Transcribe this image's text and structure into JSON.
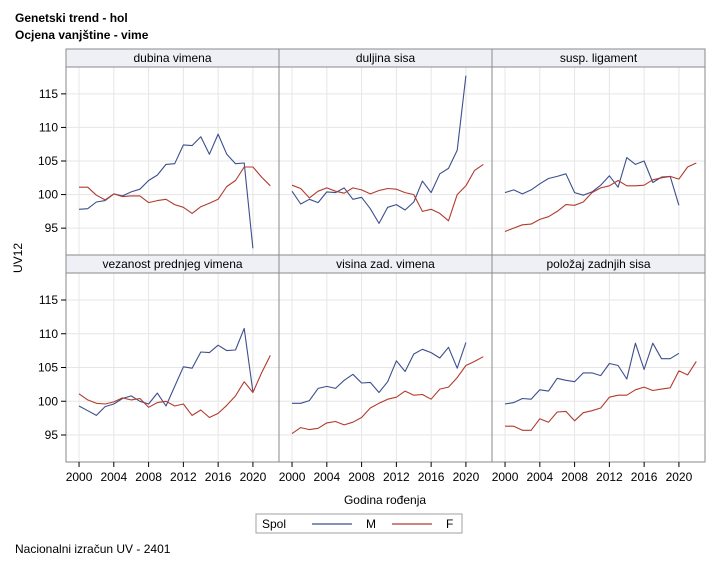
{
  "title": "Genetski trend - hol",
  "subtitle": "Ocjena vanjštine - vime",
  "footnote": "Nacionalni izračun UV - 2401",
  "colors": {
    "M": "#3c4f8c",
    "F": "#b23b2e",
    "grid": "#e6e6e6",
    "frame": "#8a8a8a",
    "header_bg": "#eef0f6"
  },
  "chart_data": {
    "type": "line",
    "ylabel": "UV12",
    "xlabel": "Godina rođenja",
    "xlim": [
      1998.5,
      2023
    ],
    "ylim": [
      91,
      119
    ],
    "x_ticks": [
      2000,
      2004,
      2008,
      2012,
      2016,
      2020
    ],
    "y_ticks": [
      95,
      100,
      105,
      110,
      115
    ],
    "grid": true,
    "legend": {
      "title": "Spol",
      "placement": "bottom",
      "entries": [
        "M",
        "F"
      ]
    },
    "panels": [
      {
        "title": "dubina vimena",
        "series": [
          {
            "name": "M",
            "x": [
              2000,
              2001,
              2002,
              2003,
              2004,
              2005,
              2006,
              2007,
              2008,
              2009,
              2010,
              2011,
              2012,
              2013,
              2014,
              2015,
              2016,
              2017,
              2018,
              2019,
              2020
            ],
            "y": [
              97.8,
              97.9,
              98.9,
              99.1,
              100.1,
              99.8,
              100.4,
              100.8,
              102.1,
              102.9,
              104.5,
              104.6,
              107.4,
              107.3,
              108.6,
              106.0,
              109.0,
              106.0,
              104.6,
              104.7,
              92.0
            ]
          },
          {
            "name": "F",
            "x": [
              2000,
              2001,
              2002,
              2003,
              2004,
              2005,
              2006,
              2007,
              2008,
              2009,
              2010,
              2011,
              2012,
              2013,
              2014,
              2015,
              2016,
              2017,
              2018,
              2019,
              2020,
              2021,
              2022
            ],
            "y": [
              101.1,
              101.1,
              99.9,
              99.2,
              100.1,
              99.7,
              99.8,
              99.8,
              98.8,
              99.1,
              99.3,
              98.5,
              98.1,
              97.2,
              98.2,
              98.7,
              99.3,
              101.2,
              102.1,
              104.1,
              104.1,
              102.6,
              101.3
            ]
          }
        ]
      },
      {
        "title": "duljina sisa",
        "series": [
          {
            "name": "M",
            "x": [
              2000,
              2001,
              2002,
              2003,
              2004,
              2005,
              2006,
              2007,
              2008,
              2009,
              2010,
              2011,
              2012,
              2013,
              2014,
              2015,
              2016,
              2017,
              2018,
              2019,
              2020
            ],
            "y": [
              100.5,
              98.6,
              99.3,
              98.8,
              100.4,
              100.3,
              101.0,
              99.3,
              99.6,
              97.9,
              95.7,
              98.1,
              98.5,
              97.7,
              98.9,
              102.0,
              100.3,
              103.1,
              103.9,
              106.6,
              117.7
            ]
          },
          {
            "name": "F",
            "x": [
              2000,
              2001,
              2002,
              2003,
              2004,
              2005,
              2006,
              2007,
              2008,
              2009,
              2010,
              2011,
              2012,
              2013,
              2014,
              2015,
              2016,
              2017,
              2018,
              2019,
              2020,
              2021,
              2022
            ],
            "y": [
              101.4,
              100.9,
              99.5,
              100.5,
              101.0,
              100.5,
              100.2,
              101.0,
              100.7,
              100.1,
              100.6,
              100.9,
              100.8,
              100.3,
              100.0,
              97.5,
              97.8,
              97.2,
              96.1,
              100.0,
              101.3,
              103.6,
              104.5
            ]
          }
        ]
      },
      {
        "title": "susp. ligament",
        "series": [
          {
            "name": "M",
            "x": [
              2000,
              2001,
              2002,
              2003,
              2004,
              2005,
              2006,
              2007,
              2008,
              2009,
              2010,
              2011,
              2012,
              2013,
              2014,
              2015,
              2016,
              2017,
              2018,
              2019,
              2020
            ],
            "y": [
              100.3,
              100.7,
              100.1,
              100.7,
              101.6,
              102.4,
              102.7,
              103.1,
              100.3,
              99.9,
              100.4,
              101.4,
              102.8,
              101.1,
              105.5,
              104.5,
              105.0,
              101.8,
              102.6,
              102.7,
              98.4
            ]
          },
          {
            "name": "F",
            "x": [
              2000,
              2001,
              2002,
              2003,
              2004,
              2005,
              2006,
              2007,
              2008,
              2009,
              2010,
              2011,
              2012,
              2013,
              2014,
              2015,
              2016,
              2017,
              2018,
              2019,
              2020,
              2021,
              2022
            ],
            "y": [
              94.5,
              95.0,
              95.5,
              95.6,
              96.3,
              96.7,
              97.5,
              98.5,
              98.4,
              98.9,
              100.3,
              101.0,
              101.3,
              102.1,
              101.3,
              101.3,
              101.4,
              102.2,
              102.5,
              102.7,
              102.3,
              104.1,
              104.7
            ]
          }
        ]
      },
      {
        "title": "vezanost prednjeg vimena",
        "series": [
          {
            "name": "M",
            "x": [
              2000,
              2001,
              2002,
              2003,
              2004,
              2005,
              2006,
              2007,
              2008,
              2009,
              2010,
              2011,
              2012,
              2013,
              2014,
              2015,
              2016,
              2017,
              2018,
              2019,
              2020
            ],
            "y": [
              99.3,
              98.6,
              97.9,
              99.2,
              99.6,
              100.4,
              100.8,
              100.0,
              99.6,
              101.2,
              99.3,
              102.2,
              105.1,
              104.9,
              107.3,
              107.2,
              108.3,
              107.5,
              107.6,
              110.8,
              101.4
            ]
          },
          {
            "name": "F",
            "x": [
              2000,
              2001,
              2002,
              2003,
              2004,
              2005,
              2006,
              2007,
              2008,
              2009,
              2010,
              2011,
              2012,
              2013,
              2014,
              2015,
              2016,
              2017,
              2018,
              2019,
              2020,
              2021,
              2022
            ],
            "y": [
              101.1,
              100.2,
              99.7,
              99.6,
              99.9,
              100.5,
              100.2,
              100.4,
              99.1,
              99.8,
              100.0,
              99.3,
              99.6,
              97.9,
              98.7,
              97.6,
              98.2,
              99.4,
              100.8,
              102.9,
              101.3,
              104.2,
              106.8
            ]
          }
        ]
      },
      {
        "title": "visina zad. vimena",
        "series": [
          {
            "name": "M",
            "x": [
              2000,
              2001,
              2002,
              2003,
              2004,
              2005,
              2006,
              2007,
              2008,
              2009,
              2010,
              2011,
              2012,
              2013,
              2014,
              2015,
              2016,
              2017,
              2018,
              2019,
              2020
            ],
            "y": [
              99.7,
              99.7,
              100.1,
              101.9,
              102.2,
              101.9,
              103.1,
              104.0,
              102.7,
              102.8,
              101.3,
              102.9,
              106.0,
              104.4,
              107.0,
              107.7,
              107.2,
              106.4,
              108.0,
              104.9,
              108.7
            ]
          },
          {
            "name": "F",
            "x": [
              2000,
              2001,
              2002,
              2003,
              2004,
              2005,
              2006,
              2007,
              2008,
              2009,
              2010,
              2011,
              2012,
              2013,
              2014,
              2015,
              2016,
              2017,
              2018,
              2019,
              2020,
              2021,
              2022
            ],
            "y": [
              95.2,
              96.1,
              95.8,
              96.0,
              96.8,
              97.0,
              96.5,
              96.9,
              97.6,
              99.0,
              99.7,
              100.3,
              100.6,
              101.5,
              100.9,
              101.0,
              100.3,
              101.8,
              102.1,
              103.5,
              105.3,
              105.9,
              106.6
            ]
          }
        ]
      },
      {
        "title": "položaj zadnjih sisa",
        "series": [
          {
            "name": "M",
            "x": [
              2000,
              2001,
              2002,
              2003,
              2004,
              2005,
              2006,
              2007,
              2008,
              2009,
              2010,
              2011,
              2012,
              2013,
              2014,
              2015,
              2016,
              2017,
              2018,
              2019,
              2020
            ],
            "y": [
              99.6,
              99.8,
              100.4,
              100.3,
              101.7,
              101.5,
              103.4,
              103.1,
              102.9,
              104.2,
              104.2,
              103.8,
              105.6,
              105.3,
              103.3,
              108.6,
              104.7,
              108.6,
              106.3,
              106.3,
              107.1
            ]
          },
          {
            "name": "F",
            "x": [
              2000,
              2001,
              2002,
              2003,
              2004,
              2005,
              2006,
              2007,
              2008,
              2009,
              2010,
              2011,
              2012,
              2013,
              2014,
              2015,
              2016,
              2017,
              2018,
              2019,
              2020,
              2021,
              2022
            ],
            "y": [
              96.3,
              96.3,
              95.7,
              95.7,
              97.4,
              96.9,
              98.4,
              98.5,
              97.1,
              98.3,
              98.6,
              99.0,
              100.6,
              100.9,
              100.9,
              101.7,
              102.1,
              101.6,
              101.8,
              102.0,
              104.5,
              103.9,
              105.9
            ]
          }
        ]
      }
    ]
  }
}
